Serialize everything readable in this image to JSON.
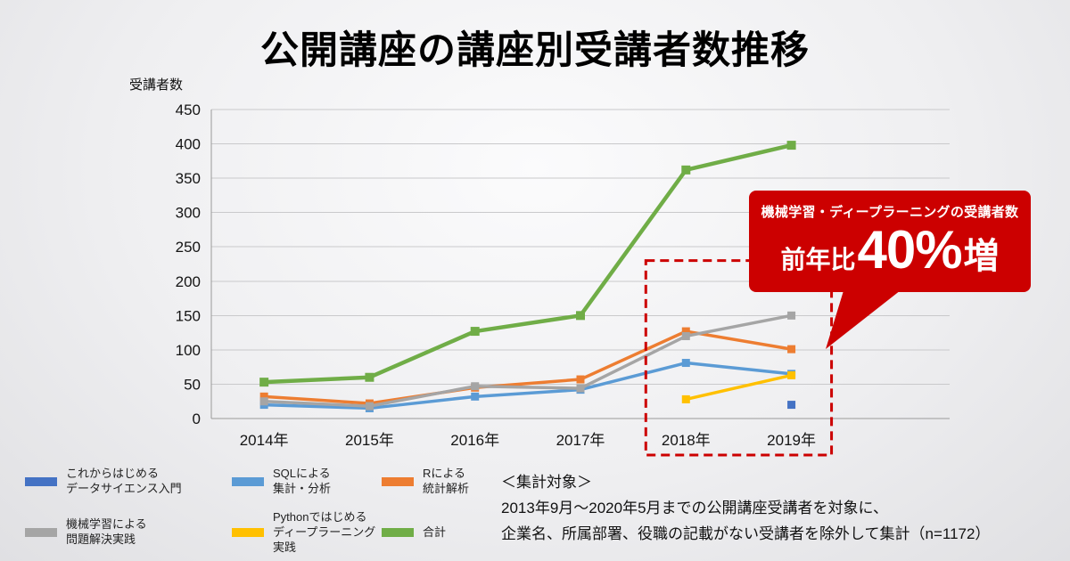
{
  "chart_data": {
    "type": "line",
    "title": "公開講座の講座別受講者数推移",
    "ylabel": "受講者数",
    "categories": [
      "2014年",
      "2015年",
      "2016年",
      "2017年",
      "2018年",
      "2019年"
    ],
    "ylim": [
      0,
      450
    ],
    "ytick_step": 50,
    "grid": true,
    "series": [
      {
        "name": "これからはじめるデータサイエンス入門",
        "color": "#4472C4",
        "values": [
          null,
          null,
          null,
          null,
          null,
          20
        ]
      },
      {
        "name": "SQLによる集計・分析",
        "color": "#5B9BD5",
        "values": [
          20,
          15,
          32,
          42,
          81,
          65
        ]
      },
      {
        "name": "Rによる統計解析",
        "color": "#ED7D31",
        "values": [
          32,
          22,
          45,
          57,
          127,
          101
        ]
      },
      {
        "name": "機械学習による問題解決実践",
        "color": "#A5A5A5",
        "values": [
          25,
          18,
          47,
          44,
          120,
          150
        ]
      },
      {
        "name": "Pythonではじめるディープラーニング実践",
        "color": "#FFC000",
        "values": [
          null,
          null,
          null,
          null,
          28,
          63
        ]
      },
      {
        "name": "合計",
        "color": "#70AD47",
        "values": [
          53,
          60,
          127,
          150,
          362,
          398
        ]
      }
    ],
    "highlight_region": {
      "from_category": "2018年",
      "to_category": "2019年",
      "top_value": 230
    }
  },
  "callout": {
    "label": "機械学習・ディープラーニングの受講者数",
    "prefix": "前年比",
    "big_value": "40%",
    "suffix": "増",
    "color": "#CC0000"
  },
  "legend": {
    "items": [
      {
        "lines": [
          "これからはじめる",
          "データサイエンス入門"
        ],
        "color": "#4472C4"
      },
      {
        "lines": [
          "SQLによる",
          "集計・分析"
        ],
        "color": "#5B9BD5"
      },
      {
        "lines": [
          "Rによる",
          "統計解析"
        ],
        "color": "#ED7D31"
      },
      {
        "lines": [
          "機械学習による",
          "問題解決実践"
        ],
        "color": "#A5A5A5"
      },
      {
        "lines": [
          "Pythonではじめる",
          "ディープラーニング実践"
        ],
        "color": "#FFC000"
      },
      {
        "lines": [
          "合計"
        ],
        "color": "#70AD47"
      }
    ]
  },
  "footnote": {
    "heading": "＜集計対象＞",
    "lines": [
      "2013年9月〜2020年5月までの公開講座受講者を対象に、",
      "企業名、所属部署、役職の記載がない受講者を除外して集計（n=1172）"
    ]
  }
}
